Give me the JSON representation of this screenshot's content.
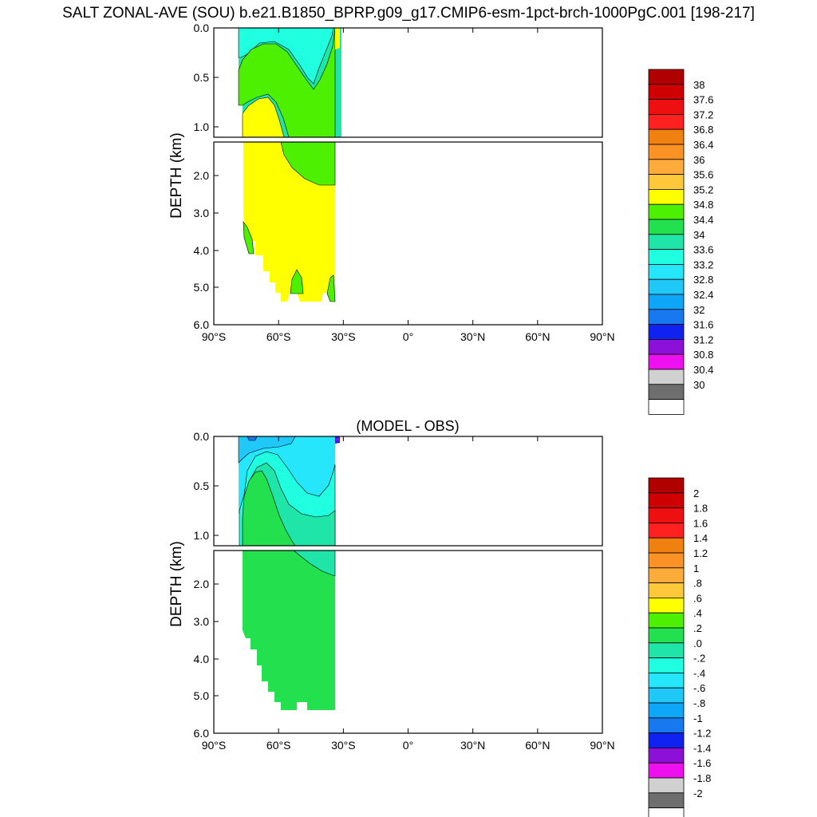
{
  "title": "SALT ZONAL-AVE (SOU) b.e21.B1850_BPRP.g09_g17.CMIP6-esm-1pct-brch-1000PgC.001 [198-217]",
  "chart_data": [
    {
      "type": "contour",
      "panel_title": "",
      "ylabel": "DEPTH (km)",
      "x_ticks": [
        "90°S",
        "60°S",
        "30°S",
        "0°",
        "30°N",
        "60°N",
        "90°N"
      ],
      "y_ticks_upper": [
        "0.0",
        "0.5",
        "1.0"
      ],
      "y_ticks_lower": [
        "2.0",
        "3.0",
        "4.0",
        "5.0",
        "6.0"
      ],
      "xlim": [
        -90,
        90
      ],
      "ylim": [
        0,
        6
      ],
      "colorbar_labels": [
        "38",
        "37.6",
        "37.2",
        "36.8",
        "36.4",
        "36",
        "35.6",
        "35.2",
        "34.8",
        "34.4",
        "34",
        "33.6",
        "33.2",
        "32.8",
        "32.4",
        "32",
        "31.6",
        "31.2",
        "30.8",
        "30.4",
        "30"
      ],
      "colorbar_colors": [
        "#b00000",
        "#d00000",
        "#ee1010",
        "#ff2020",
        "#f08010",
        "#fb9226",
        "#fdab3a",
        "#fdc93a",
        "#ffff00",
        "#4cf000",
        "#22e04e",
        "#1fe6a8",
        "#20ffe0",
        "#25e6fa",
        "#20c8f8",
        "#0da6f8",
        "#1778f0",
        "#1022f0",
        "#8c10d8",
        "#ee10ee",
        "#d0d0d0",
        "#6e6e6e",
        "#ffffff"
      ]
    },
    {
      "type": "contour",
      "panel_title": "(MODEL - OBS)",
      "ylabel": "DEPTH (km)",
      "x_ticks": [
        "90°S",
        "60°S",
        "30°S",
        "0°",
        "30°N",
        "60°N",
        "90°N"
      ],
      "y_ticks_upper": [
        "0.0",
        "0.5",
        "1.0"
      ],
      "y_ticks_lower": [
        "2.0",
        "3.0",
        "4.0",
        "5.0",
        "6.0"
      ],
      "xlim": [
        -90,
        90
      ],
      "ylim": [
        0,
        6
      ],
      "colorbar_labels": [
        "2",
        "1.8",
        "1.6",
        "1.4",
        "1.2",
        "1",
        ".8",
        ".6",
        ".4",
        ".2",
        ".0",
        "-.2",
        "-.4",
        "-.6",
        "-.8",
        "-1",
        "-1.2",
        "-1.4",
        "-1.6",
        "-1.8",
        "-2"
      ],
      "colorbar_colors": [
        "#b00000",
        "#d00000",
        "#ee1010",
        "#ff2020",
        "#f08010",
        "#fb9226",
        "#fdab3a",
        "#fdc93a",
        "#ffff00",
        "#4cf000",
        "#22e04e",
        "#1fe6a8",
        "#20ffe0",
        "#25e6fa",
        "#20c8f8",
        "#0da6f8",
        "#1778f0",
        "#1022f0",
        "#8c10d8",
        "#ee10ee",
        "#d0d0d0",
        "#6e6e6e",
        "#ffffff"
      ]
    }
  ]
}
